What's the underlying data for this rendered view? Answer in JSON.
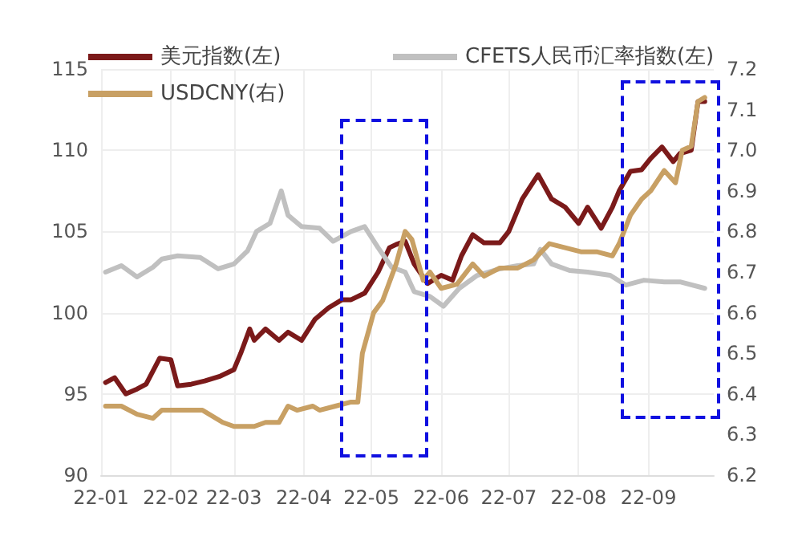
{
  "chart_data": {
    "type": "line",
    "legend": "top",
    "grid": true,
    "marker": "none",
    "line_style": "solid",
    "xlim": [
      "--01-01",
      "--09-30"
    ],
    "xticks": [
      {
        "value": "--01-01",
        "label": "22-01"
      },
      {
        "value": "--02-01",
        "label": "22-02"
      },
      {
        "value": "--03-01",
        "label": "22-03"
      },
      {
        "value": "--04-01",
        "label": "22-04"
      },
      {
        "value": "--05-01",
        "label": "22-05"
      },
      {
        "value": "--06-01",
        "label": "22-06"
      },
      {
        "value": "--07-01",
        "label": "22-07"
      },
      {
        "value": "--08-01",
        "label": "22-08"
      },
      {
        "value": "--09-01",
        "label": "22-09"
      }
    ],
    "ylim": [
      90,
      115
    ],
    "yticks": [
      90,
      95,
      100,
      105,
      110,
      115
    ],
    "y2lim": [
      6.2,
      7.2
    ],
    "y2ticks": [
      6.2,
      6.3,
      6.4,
      6.5,
      6.6,
      6.7,
      6.8,
      6.9,
      {
        "value": 7,
        "label": "7.0"
      },
      7.1,
      7.2
    ],
    "series": [
      {
        "name": "美元指数(左)",
        "color": "#7b1a1a",
        "x": [
          "--01-03",
          "--01-07",
          "--01-12",
          "--01-17",
          "--01-21",
          "--01-27",
          "--02-01",
          "--02-04",
          "--02-10",
          "--02-16",
          "--02-23",
          "--03-01",
          "--03-04",
          "--03-08",
          "--03-10",
          "--03-15",
          "--03-21",
          "--03-25",
          "--03-31",
          "--04-06",
          "--04-12",
          "--04-18",
          "--04-22",
          "--04-28",
          "--05-04",
          "--05-09",
          "--05-12",
          "--05-16",
          "--05-20",
          "--05-26",
          "--06-01",
          "--06-06",
          "--06-10",
          "--06-15",
          "--06-20",
          "--06-27",
          "--07-01",
          "--07-07",
          "--07-14",
          "--07-20",
          "--07-26",
          "--08-01",
          "--08-05",
          "--08-11",
          "--08-16",
          "--08-19",
          "--08-24",
          "--08-29",
          "--09-02",
          "--09-07",
          "--09-12",
          "--09-15",
          "--09-20",
          "--09-23",
          "--09-26"
        ],
        "values": [
          95.7,
          96.0,
          95.0,
          95.3,
          95.6,
          97.2,
          97.1,
          95.5,
          95.6,
          95.8,
          96.1,
          96.5,
          97.5,
          99.0,
          98.3,
          99.0,
          98.3,
          98.8,
          98.3,
          99.6,
          100.3,
          100.8,
          100.8,
          101.2,
          102.5,
          104.0,
          104.2,
          104.4,
          103.0,
          101.8,
          102.3,
          102.0,
          103.5,
          104.8,
          104.3,
          104.3,
          105.0,
          107.0,
          108.5,
          107.0,
          106.5,
          105.5,
          106.5,
          105.2,
          106.5,
          107.5,
          108.7,
          108.8,
          109.5,
          110.2,
          109.3,
          109.8,
          110.0,
          113.0,
          113.0
        ]
      },
      {
        "name": "CFETS人民币汇率指数(左)",
        "color": "#c0c0c0",
        "x": [
          "--01-03",
          "--01-10",
          "--01-17",
          "--01-24",
          "--01-28",
          "--02-04",
          "--02-14",
          "--02-22",
          "--03-01",
          "--03-07",
          "--03-11",
          "--03-17",
          "--03-22",
          "--03-25",
          "--03-31",
          "--04-08",
          "--04-14",
          "--04-22",
          "--04-28",
          "--05-04",
          "--05-10",
          "--05-16",
          "--05-20",
          "--05-27",
          "--06-02",
          "--06-09",
          "--06-17",
          "--06-27",
          "--07-05",
          "--07-12",
          "--07-15",
          "--07-20",
          "--07-28",
          "--08-05",
          "--08-15",
          "--08-22",
          "--08-30",
          "--09-08",
          "--09-15",
          "--09-26"
        ],
        "values": [
          102.5,
          102.9,
          102.2,
          102.8,
          103.3,
          103.5,
          103.4,
          102.7,
          103.0,
          103.8,
          105.0,
          105.5,
          107.5,
          106.0,
          105.3,
          105.2,
          104.4,
          105.0,
          105.3,
          104.0,
          102.8,
          102.5,
          101.3,
          101.0,
          100.4,
          101.5,
          102.3,
          102.7,
          102.9,
          103.0,
          103.9,
          103.0,
          102.6,
          102.5,
          102.3,
          101.7,
          102.0,
          101.9,
          101.9,
          101.5
        ]
      },
      {
        "name": "USDCNY(右)",
        "color": "#c8a064",
        "axis": "y2",
        "x": [
          "--01-03",
          "--01-10",
          "--01-17",
          "--01-24",
          "--01-28",
          "--02-07",
          "--02-15",
          "--02-24",
          "--03-01",
          "--03-10",
          "--03-15",
          "--03-21",
          "--03-25",
          "--03-29",
          "--04-05",
          "--04-08",
          "--04-15",
          "--04-22",
          "--04-25",
          "--04-27",
          "--05-02",
          "--05-06",
          "--05-12",
          "--05-16",
          "--05-19",
          "--05-24",
          "--05-27",
          "--06-01",
          "--06-08",
          "--06-15",
          "--06-20",
          "--06-27",
          "--07-05",
          "--07-12",
          "--07-19",
          "--07-26",
          "--08-02",
          "--08-09",
          "--08-16",
          "--08-19",
          "--08-24",
          "--08-29",
          "--09-02",
          "--09-08",
          "--09-13",
          "--09-16",
          "--09-20",
          "--09-23",
          "--09-26"
        ],
        "values": [
          6.37,
          6.37,
          6.35,
          6.34,
          6.36,
          6.36,
          6.36,
          6.33,
          6.32,
          6.32,
          6.33,
          6.33,
          6.37,
          6.36,
          6.37,
          6.36,
          6.37,
          6.38,
          6.38,
          6.5,
          6.6,
          6.63,
          6.72,
          6.8,
          6.78,
          6.68,
          6.7,
          6.66,
          6.67,
          6.72,
          6.69,
          6.71,
          6.71,
          6.73,
          6.77,
          6.76,
          6.75,
          6.75,
          6.74,
          6.77,
          6.84,
          6.88,
          6.9,
          6.95,
          6.92,
          7.0,
          7.01,
          7.12,
          7.13
        ]
      }
    ]
  }
}
